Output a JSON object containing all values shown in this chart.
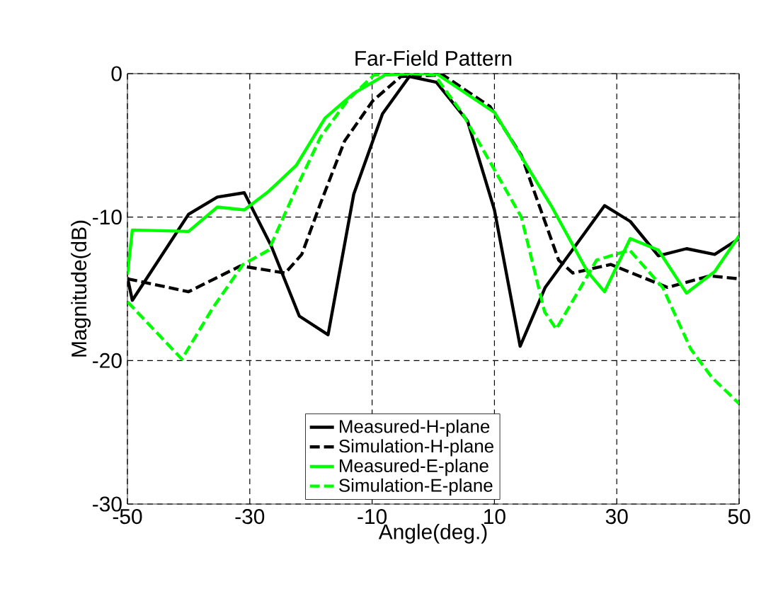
{
  "chart_data": {
    "type": "line",
    "title": "Far-Field Pattern",
    "xlabel": "Angle(deg.)",
    "ylabel": "Magnitude(dB)",
    "xlim": [
      -50,
      50
    ],
    "ylim": [
      -30,
      0
    ],
    "xticks": [
      -50,
      -30,
      -10,
      10,
      30,
      50
    ],
    "yticks": [
      -30,
      -20,
      -10,
      0
    ],
    "grid": true,
    "legend": "bottom",
    "marker": "none",
    "series": [
      {
        "name": "Measured-H-plane",
        "color": "#000000",
        "line_style": "solid",
        "x": [
          -50,
          -49.2,
          -40,
          -35.3,
          -30.9,
          -26.5,
          -21.9,
          -17.2,
          -13,
          -8.3,
          -3.9,
          0.5,
          5.6,
          10,
          14.2,
          18.3,
          28,
          32.2,
          36.8,
          41.4,
          46,
          50
        ],
        "values": [
          -14.2,
          -15.8,
          -9.8,
          -8.6,
          -8.3,
          -12,
          -16.9,
          -18.2,
          -8.4,
          -2.8,
          -0.2,
          -0.6,
          -3.3,
          -9.5,
          -19,
          -14.9,
          -9.2,
          -10.3,
          -12.7,
          -12.2,
          -12.6,
          -11.5
        ]
      },
      {
        "name": "Simulation-H-plane",
        "color": "#000000",
        "line_style": "dashed",
        "x": [
          -50,
          -40,
          -31.5,
          -24.2,
          -21.5,
          -18.4,
          -14.5,
          -9.9,
          -5.3,
          1.6,
          9.3,
          14.4,
          20.5,
          22.8,
          29,
          38.3,
          45.2,
          50
        ],
        "values": [
          -14.3,
          -15.2,
          -13.4,
          -13.9,
          -12.6,
          -9,
          -4.7,
          -1.9,
          -0.2,
          -0.1,
          -2.3,
          -5.7,
          -13,
          -13.9,
          -13.3,
          -14.9,
          -14.1,
          -14.3
        ]
      },
      {
        "name": "Measured-E-plane",
        "color": "#00ff00",
        "line_style": "solid",
        "x": [
          -50,
          -49.2,
          -40,
          -35.3,
          -30.9,
          -26.9,
          -22.4,
          -17.7,
          -13.1,
          -7.9,
          -4,
          0.5,
          10,
          19.4,
          25.2,
          28,
          32.2,
          36.8,
          41.4,
          46,
          50
        ],
        "values": [
          -14,
          -10.9,
          -11,
          -9.3,
          -9.5,
          -8.2,
          -6.4,
          -3.1,
          -1.4,
          -0.1,
          0,
          0,
          -2.7,
          -9.3,
          -13.8,
          -15.2,
          -11.5,
          -12.3,
          -15.3,
          -13.8,
          -11.3
        ]
      },
      {
        "name": "Simulation-E-plane",
        "color": "#00ff00",
        "line_style": "dashed",
        "x": [
          -50,
          -41.1,
          -36,
          -31.1,
          -26.9,
          -22.4,
          -18.4,
          -13.9,
          -9.7,
          -3.7,
          0.2,
          4.8,
          14.4,
          18.2,
          20.1,
          26.7,
          32.1,
          37.5,
          42.1,
          45.6,
          50
        ],
        "values": [
          -15.9,
          -19.9,
          -16.3,
          -13.3,
          -12.3,
          -8,
          -4.4,
          -1.8,
          -0.1,
          0,
          -0.1,
          -2.8,
          -10,
          -16.6,
          -17.8,
          -13,
          -12.3,
          -14.9,
          -19.2,
          -21.2,
          -23
        ]
      }
    ]
  }
}
